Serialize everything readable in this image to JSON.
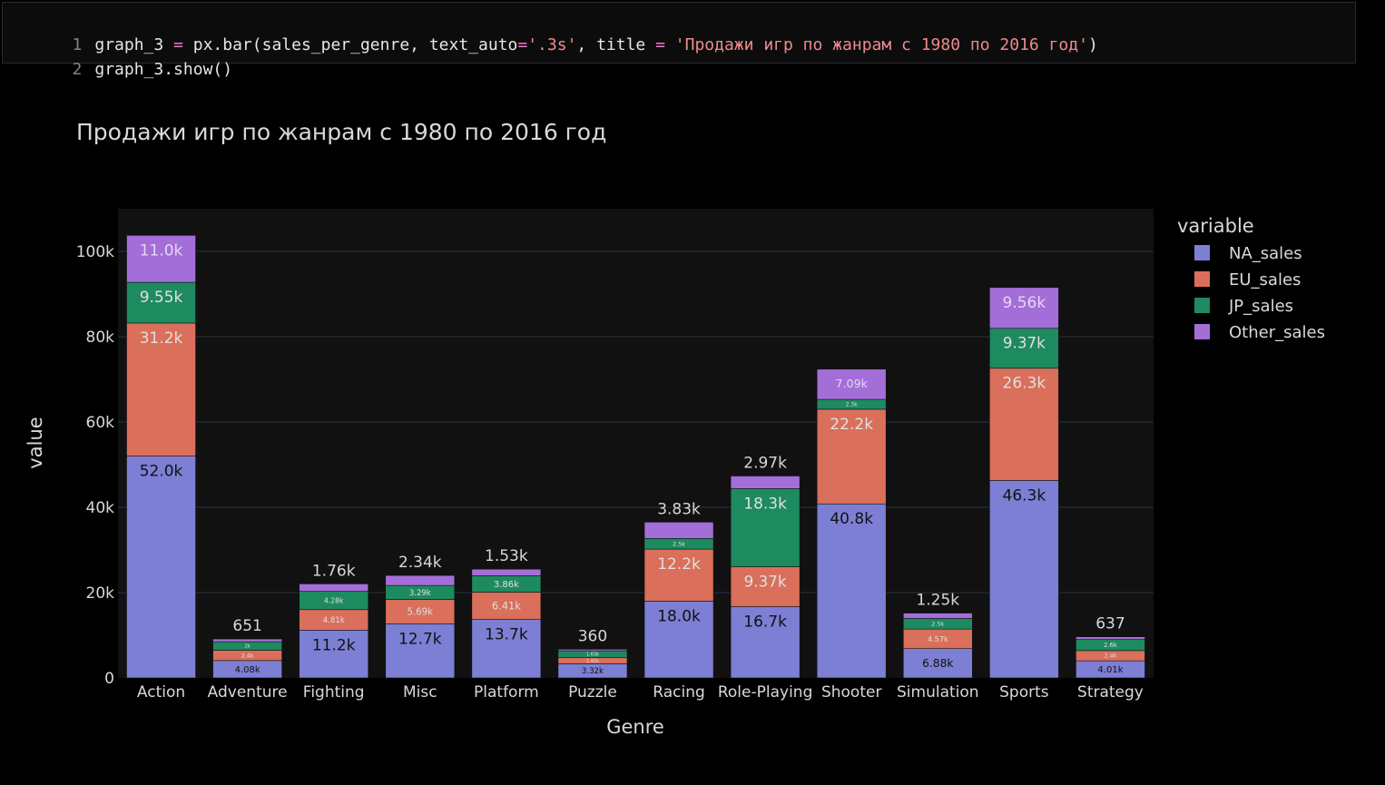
{
  "code": {
    "line1_no": "1",
    "line1_a": "graph_3 ",
    "line1_eq1": "=",
    "line1_b": " px.bar(sales_per_genre, text_auto",
    "line1_eq2": "=",
    "line1_str1": "'.3s'",
    "line1_c": ", title ",
    "line1_eq3": "=",
    "line1_str2": " 'Продажи игр по жанрам с 1980 по 2016 год'",
    "line1_d": ")",
    "line2_no": "2",
    "line2": "graph_3.show()"
  },
  "colors": {
    "plot_bg": "#111111",
    "grid": "#283442",
    "series": [
      "#7c7fd4",
      "#da6f5b",
      "#1e8a5f",
      "#a46ed8"
    ]
  },
  "chart_data": {
    "type": "bar",
    "stacked": true,
    "title": "Продажи игр по жанрам с 1980 по 2016 год",
    "xlabel": "Genre",
    "ylabel": "value",
    "ylim": [
      0,
      110000
    ],
    "yticks": [
      0,
      20000,
      40000,
      60000,
      80000,
      100000
    ],
    "ytick_labels": [
      "0",
      "20k",
      "40k",
      "60k",
      "80k",
      "100k"
    ],
    "grid": true,
    "legend_title": "variable",
    "legend_position": "right",
    "categories": [
      "Action",
      "Adventure",
      "Fighting",
      "Misc",
      "Platform",
      "Puzzle",
      "Racing",
      "Role-Playing",
      "Shooter",
      "Simulation",
      "Sports",
      "Strategy"
    ],
    "series": [
      {
        "name": "NA_sales",
        "values": [
          52000,
          4080,
          11200,
          12700,
          13700,
          3320,
          18000,
          16700,
          40800,
          6880,
          46300,
          4010
        ],
        "labels": [
          "52.0k",
          "4.08k",
          "11.2k",
          "12.7k",
          "13.7k",
          "3.32k",
          "18.0k",
          "16.7k",
          "40.8k",
          "6.88k",
          "46.3k",
          "4.01k"
        ]
      },
      {
        "name": "EU_sales",
        "values": [
          31200,
          2400,
          4810,
          5690,
          6410,
          1420,
          12200,
          9370,
          22200,
          4570,
          26300,
          2400
        ],
        "labels": [
          "31.2k",
          "2.4k",
          "4.81k",
          "5.69k",
          "6.41k",
          "1.42k",
          "12.2k",
          "9.37k",
          "22.2k",
          "4.57k",
          "26.3k",
          "2.4k"
        ]
      },
      {
        "name": "JP_sales",
        "values": [
          9550,
          2000,
          4280,
          3290,
          3860,
          1630,
          2500,
          18300,
          2300,
          2500,
          9370,
          2600
        ],
        "labels": [
          "9.55k",
          "2k",
          "4.28k",
          "3.29k",
          "3.86k",
          "1.63k",
          "2.5k",
          "18.3k",
          "2.3k",
          "2.5k",
          "9.37k",
          "2.6k"
        ]
      },
      {
        "name": "Other_sales",
        "values": [
          11000,
          651,
          1760,
          2340,
          1530,
          360,
          3830,
          2970,
          7090,
          1250,
          9560,
          637
        ],
        "labels": [
          "11.0k",
          "651",
          "1.76k",
          "2.34k",
          "1.53k",
          "360",
          "3.83k",
          "2.97k",
          "7.09k",
          "1.25k",
          "9.56k",
          "637"
        ]
      }
    ]
  }
}
